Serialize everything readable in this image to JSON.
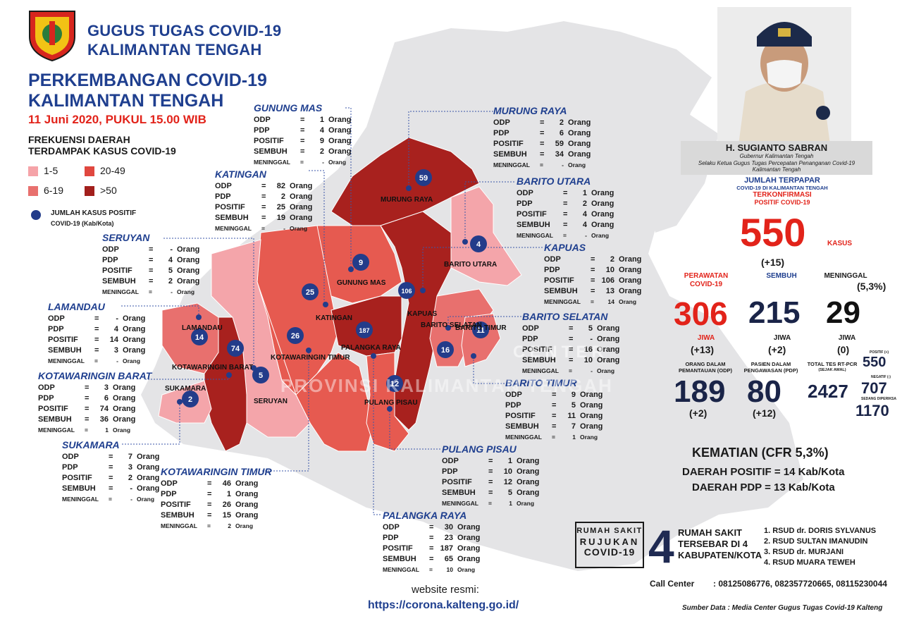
{
  "header": {
    "org_line1": "GUGUS TUGAS COVID-19",
    "org_line2": "KALIMANTAN TENGAH",
    "title_line1": "PERKEMBANGAN COVID-19",
    "title_line2": "KALIMANTAN TENGAH",
    "date": "11 Juni 2020, PUKUL 15.00 WIB"
  },
  "legend": {
    "title_line1": "FREKUENSI DAERAH",
    "title_line2": "TERDAMPAK KASUS COVID-19",
    "items": [
      {
        "label": "1-5",
        "color": "#f5a3a8"
      },
      {
        "label": "20-49",
        "color": "#e0473f"
      },
      {
        "label": "6-19",
        "color": "#e8706e"
      },
      {
        "label": ">50",
        "color": "#a21f1c"
      }
    ],
    "dot_label_line1": "JUMLAH KASUS POSITIF",
    "dot_label_line2": "COVID-19 (Kab/Kota)",
    "dot_color": "#233c8a"
  },
  "row_labels": {
    "odp": "ODP",
    "pdp": "PDP",
    "positif": "POSITIF",
    "sembuh": "SEMBUH",
    "meninggal": "MENINGGAL",
    "eq": "=",
    "unit": "Orang"
  },
  "regions": [
    {
      "name": "GUNUNG MAS",
      "odp": "1",
      "pdp": "4",
      "positif": "9",
      "sembuh": "2",
      "meninggal": "-"
    },
    {
      "name": "KATINGAN",
      "odp": "82",
      "pdp": "2",
      "positif": "25",
      "sembuh": "19",
      "meninggal": "-"
    },
    {
      "name": "SERUYAN",
      "odp": "-",
      "pdp": "4",
      "positif": "5",
      "sembuh": "2",
      "meninggal": "-"
    },
    {
      "name": "LAMANDAU",
      "odp": "-",
      "pdp": "4",
      "positif": "14",
      "sembuh": "3",
      "meninggal": "-"
    },
    {
      "name": "KOTAWARINGIN BARAT",
      "odp": "3",
      "pdp": "6",
      "positif": "74",
      "sembuh": "36",
      "meninggal": "1"
    },
    {
      "name": "SUKAMARA",
      "odp": "7",
      "pdp": "3",
      "positif": "2",
      "sembuh": "-",
      "meninggal": "-"
    },
    {
      "name": "KOTAWARINGIN TIMUR",
      "odp": "46",
      "pdp": "1",
      "positif": "26",
      "sembuh": "15",
      "meninggal": "2"
    },
    {
      "name": "MURUNG RAYA",
      "odp": "2",
      "pdp": "6",
      "positif": "59",
      "sembuh": "34",
      "meninggal": "-"
    },
    {
      "name": "BARITO UTARA",
      "odp": "1",
      "pdp": "2",
      "positif": "4",
      "sembuh": "4",
      "meninggal": "-"
    },
    {
      "name": "KAPUAS",
      "odp": "2",
      "pdp": "10",
      "positif": "106",
      "sembuh": "13",
      "meninggal": "14"
    },
    {
      "name": "BARITO SELATAN",
      "odp": "5",
      "pdp": "-",
      "positif": "16",
      "sembuh": "10",
      "meninggal": "-"
    },
    {
      "name": "BARITO TIMUR",
      "odp": "9",
      "pdp": "5",
      "positif": "11",
      "sembuh": "7",
      "meninggal": "1"
    },
    {
      "name": "PULANG PISAU",
      "odp": "1",
      "pdp": "10",
      "positif": "12",
      "sembuh": "5",
      "meninggal": "1"
    },
    {
      "name": "PALANGKA RAYA",
      "odp": "30",
      "pdp": "23",
      "positif": "187",
      "sembuh": "65",
      "meninggal": "10"
    }
  ],
  "map_labels": [
    "MURUNG RAYA",
    "BARITO UTARA",
    "GUNUNG MAS",
    "KATINGAN",
    "KAPUAS",
    "BARITO SELATAN",
    "BARITO TIMUR",
    "PALANGKA RAYA",
    "LAMANDAU",
    "KOTAWARINGIN BARAT",
    "KOTAWARINGIN TIMUR",
    "SUKAMARA",
    "SERUYAN",
    "PULANG PISAU"
  ],
  "map_markers": [
    "59",
    "4",
    "9",
    "25",
    "106",
    "187",
    "26",
    "14",
    "74",
    "5",
    "2",
    "12",
    "16",
    "11"
  ],
  "watermark": {
    "line1": "CENTER",
    "line2": "PROVINSI KALIMANTAN TENGAH"
  },
  "governor": {
    "name": "H. SUGIANTO SABRAN",
    "sub1": "Gubernur Kalimantan Tengah",
    "sub2": "Selaku Ketua Gugus Tugas Percepatan Penanganan Covid-19",
    "sub3": "Kalimantan Tengah"
  },
  "stats": {
    "jumlah_terpapar": "JUMLAH TERPAPAR",
    "covid_kalteng": "COVID-19 DI KALIMANTAN TENGAH",
    "terkonfirmasi": "TERKONFIRMASI",
    "positif_covid": "POSITIF COVID-19",
    "total": "550",
    "kasus": "KASUS",
    "total_change": "(+15)",
    "perawatan_label1": "PERAWATAN",
    "perawatan_label2": "COVID-19",
    "perawatan": "306",
    "perawatan_change": "(+13)",
    "sembuh_label": "SEMBUH",
    "sembuh": "215",
    "sembuh_change": "(+2)",
    "meninggal_label": "MENINGGAL",
    "meninggal_pct": "(5,3%)",
    "meninggal": "29",
    "meninggal_change": "(0)",
    "jiwa": "JIWA",
    "odp_label1": "ORANG DALAM",
    "odp_label2": "PEMANTAUAN (ODP)",
    "odp": "189",
    "odp_change": "(+2)",
    "pdp_label1": "PASIEN DALAM",
    "pdp_label2": "PENGAWASAN (PDP)",
    "pdp": "80",
    "pdp_change": "(+12)",
    "tes_label1": "TOTAL TES RT-PCR",
    "tes_label2": "(SEJAK AWAL)",
    "tes_total": "2427",
    "positif_small": "POSITIF (+)",
    "tes_positif": "550",
    "negatif_small": "NEGATIF (-)",
    "tes_negatif": "707",
    "diperiksa_small": "SEDANG DIPERIKSA",
    "tes_diperiksa": "1170",
    "kematian": "KEMATIAN (CFR 5,3%)",
    "daerah_positif": "DAERAH POSITIF = 14 Kab/Kota",
    "daerah_pdp": "DAERAH PDP = 13 Kab/Kota"
  },
  "hospitals": {
    "box_line1": "RUMAH SAKIT",
    "box_line2": "RUJUKAN",
    "box_line3": "COVID-19",
    "count": "4",
    "mid_line1": "RUMAH SAKIT",
    "mid_line2": "TERSEBAR DI 4",
    "mid_line3": "KABUPATEN/KOTA",
    "list": [
      "1. RSUD dr. DORIS SYLVANUS",
      "2. RSUD SULTAN IMANUDIN",
      "3. RSUD dr. MURJANI",
      "4. RSUD MUARA TEWEH"
    ]
  },
  "call_center": "Call Center        : 08125086776, 082357720665, 08115230044",
  "source": "Sumber Data : Media Center Gugus Tugas Covid-19 Kalteng",
  "website": {
    "label": "website resmi:",
    "url": "https://corona.kalteng.go.id/"
  }
}
